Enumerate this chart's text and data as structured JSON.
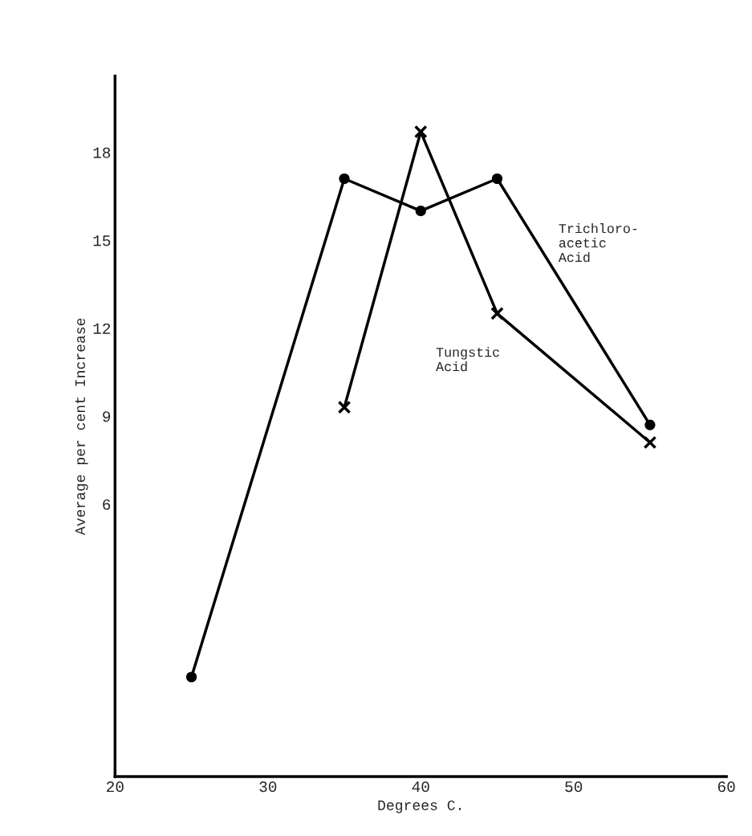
{
  "chart_data": {
    "type": "line",
    "xlabel": "Degrees C.",
    "ylabel": "Average per cent Increase",
    "xlim": [
      20,
      60
    ],
    "ylim": [
      -3.3,
      20.6
    ],
    "xticks": [
      20,
      30,
      40,
      50,
      60
    ],
    "yticks": [
      6,
      9,
      12,
      15,
      18
    ],
    "grid": false,
    "legend": false,
    "line_style": "solid",
    "x": [
      25,
      35,
      40,
      45,
      55
    ],
    "series": [
      {
        "name": "Trichloro-\nacetic\nAcid",
        "color": "#000000",
        "marker": "circle",
        "values": [
          0.1,
          17.1,
          16.0,
          17.1,
          8.7
        ]
      },
      {
        "name": "Tungstic\nAcid",
        "color": "#000000",
        "marker": "cross",
        "x": [
          35,
          40,
          45,
          55
        ],
        "values": [
          9.3,
          18.7,
          12.5,
          8.1
        ]
      }
    ]
  }
}
